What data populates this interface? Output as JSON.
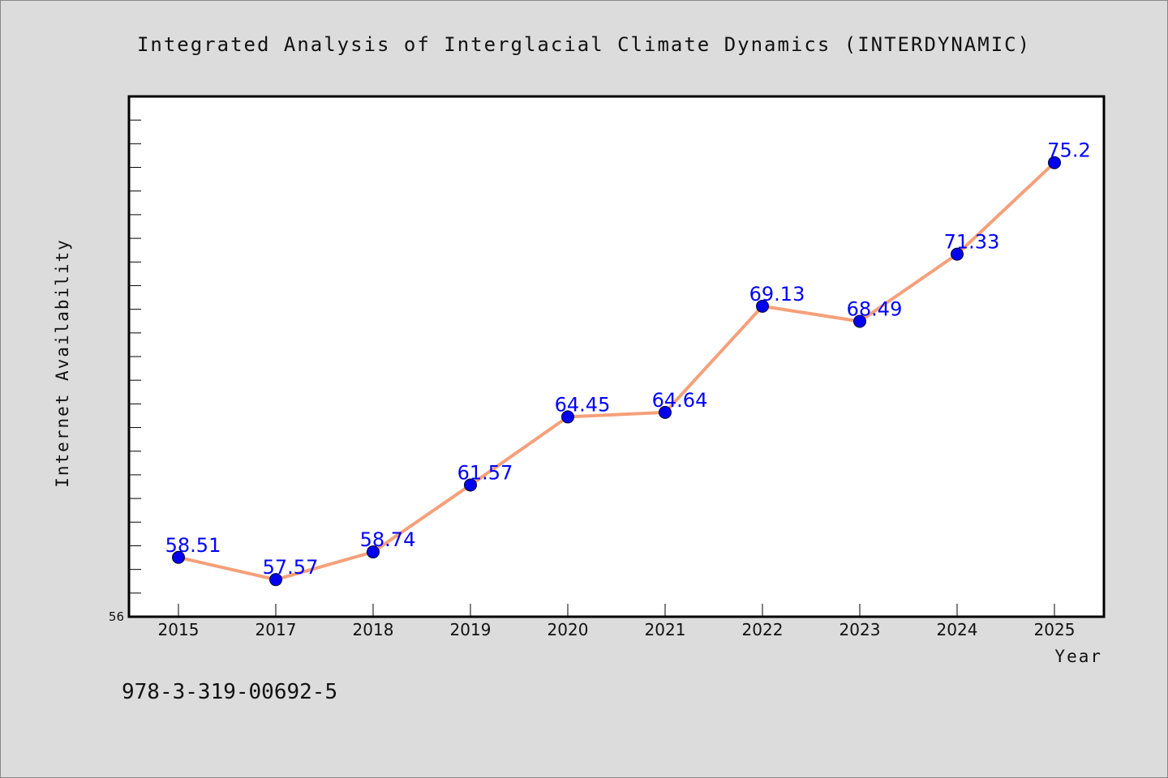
{
  "chart_data": {
    "type": "line",
    "title": "Integrated Analysis of Interglacial Climate Dynamics (INTERDYNAMIC)",
    "xlabel": "Year",
    "ylabel": "Internet Availability",
    "categories": [
      "2015",
      "2017",
      "2018",
      "2019",
      "2020",
      "2021",
      "2022",
      "2023",
      "2024",
      "2025"
    ],
    "series": [
      {
        "values": [
          58.51,
          57.57,
          58.74,
          61.57,
          64.45,
          64.64,
          69.13,
          68.49,
          71.33,
          75.2
        ],
        "labels": [
          "58.51",
          "57.57",
          "58.74",
          "61.57",
          "64.45",
          "64.64",
          "69.13",
          "68.49",
          "71.33",
          "75.2"
        ],
        "line_color": "#f5a07a",
        "marker_color": "#0000ee",
        "label_color": "#0000ff"
      }
    ],
    "ylim": [
      56,
      78
    ],
    "yticks_labeled": [
      "56"
    ],
    "ytick_minor_step": 1,
    "grid": false,
    "legend": "none",
    "background": "#dcdcdc",
    "plot_background": "#ffffff"
  },
  "footer": {
    "isbn": "978-3-319-00692-5"
  }
}
